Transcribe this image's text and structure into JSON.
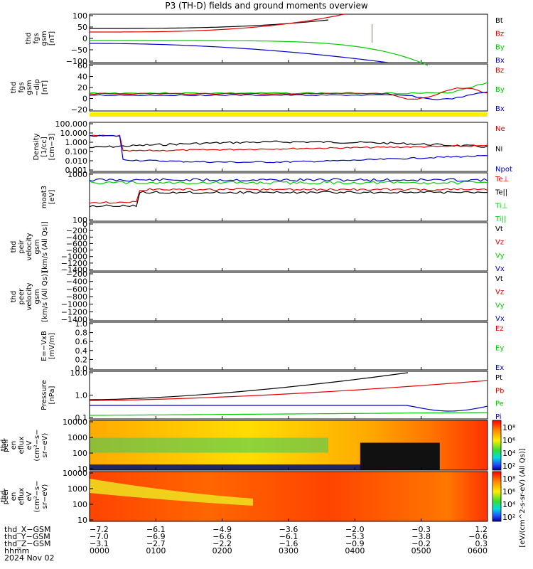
{
  "title": "P3 (TH-D) fields and ground moments overview",
  "colors": {
    "black": "#000000",
    "red": "#e00000",
    "green": "#00cc00",
    "blue": "#0000cc",
    "yellow": "#ffee00"
  },
  "chart_data": [
    {
      "type": "line",
      "ylabel": [
        "thd",
        "fgs",
        "gsm",
        "[nT]"
      ],
      "yticks": [
        "100",
        "50",
        "0",
        "−50",
        "−100"
      ],
      "legend": [
        {
          "label": "Bt",
          "color": "black"
        },
        {
          "label": "Bz",
          "color": "red"
        },
        {
          "label": "By",
          "color": "green"
        },
        {
          "label": "Bx",
          "color": "blue"
        }
      ]
    },
    {
      "type": "line",
      "ylabel": [
        "thd",
        "fgs",
        "gsm",
        "−dip",
        "[nT]"
      ],
      "yticks": [
        "60",
        "40",
        "20",
        "0",
        "−20"
      ],
      "legend": [
        {
          "label": "Bz",
          "color": "red"
        },
        {
          "label": "By",
          "color": "green"
        },
        {
          "label": "Bx",
          "color": "blue"
        }
      ]
    },
    {
      "type": "line",
      "ylabel": [
        "Density",
        "[1/cc]",
        "[cm−3]"
      ],
      "yticks": [
        "100.000",
        "10.000",
        "1.000",
        "0.100",
        "0.010",
        "0.001"
      ],
      "legend": [
        {
          "label": "Ne",
          "color": "red"
        },
        {
          "label": "Ni",
          "color": "black"
        },
        {
          "label": "Npot",
          "color": "blue"
        }
      ]
    },
    {
      "type": "line",
      "ylabel": [
        "moat3",
        "[eV]"
      ],
      "yticks": [
        "1000",
        "100"
      ],
      "legend": [
        {
          "label": "Te⊥",
          "color": "red"
        },
        {
          "label": "Te||",
          "color": "black"
        },
        {
          "label": "Ti⊥",
          "color": "green"
        },
        {
          "label": "Ti||",
          "color": "green"
        }
      ]
    },
    {
      "type": "line",
      "ylabel": [
        "thd",
        "peir",
        "velocity",
        "gsm",
        "[km/s (All Qs)]"
      ],
      "yticks": [
        "0",
        "−200",
        "−400",
        "−600",
        "−800",
        "−1000",
        "−1200",
        "−1400"
      ],
      "legend": [
        {
          "label": "Vt",
          "color": "black"
        },
        {
          "label": "Vz",
          "color": "red"
        },
        {
          "label": "Vy",
          "color": "green"
        },
        {
          "label": "Vx",
          "color": "blue"
        }
      ]
    },
    {
      "type": "line",
      "ylabel": [
        "thd",
        "peer",
        "velocity",
        "gsm",
        "[km/s (All Qs)]"
      ],
      "yticks": [
        "−200",
        "−400",
        "−600",
        "−800",
        "−1000",
        "−1200",
        "−1400"
      ],
      "legend": [
        {
          "label": "Vt",
          "color": "black"
        },
        {
          "label": "Vz",
          "color": "red"
        },
        {
          "label": "Vy",
          "color": "green"
        },
        {
          "label": "Vx",
          "color": "blue"
        }
      ]
    },
    {
      "type": "line",
      "ylabel": [
        "E=−VxB",
        "[mV/m]"
      ],
      "yticks": [
        "1.0",
        "0.8",
        "0.6",
        "0.4",
        "0.2",
        "0.0"
      ],
      "legend": [
        {
          "label": "Ez",
          "color": "red"
        },
        {
          "label": "Ey",
          "color": "green"
        },
        {
          "label": "Ex",
          "color": "blue"
        }
      ]
    },
    {
      "type": "line",
      "ylabel": [
        "Pressure",
        "[nPa]"
      ],
      "yticks": [
        "10.0",
        "1.0",
        "0.1"
      ],
      "legend": [
        {
          "label": "Pt",
          "color": "black"
        },
        {
          "label": "Pb",
          "color": "red"
        },
        {
          "label": "Pe",
          "color": "green"
        },
        {
          "label": "Pi",
          "color": "blue"
        }
      ]
    },
    {
      "type": "heatmap",
      "ylabel": [
        "thd",
        "peir",
        "en",
        "eflux",
        "eV",
        "(cm²−s−",
        "sr−eV)"
      ],
      "yticks": [
        "10000",
        "1000",
        "100",
        "10"
      ],
      "colorbar": [
        "10⁸",
        "10⁶",
        "10⁴",
        "10²"
      ]
    },
    {
      "type": "heatmap",
      "ylabel": [
        "thd",
        "peer",
        "en",
        "eflux",
        "eV",
        "(cm²−s−",
        "sr−eV)"
      ],
      "yticks": [
        "10000",
        "1000",
        "100",
        "10"
      ],
      "colorbar": [
        "10⁸",
        "10⁶",
        "10⁴",
        "10²"
      ]
    }
  ],
  "colorbar_label": "[eV/(cm^2-s-sr-eV) (All Qs)]",
  "bottom": {
    "rows": [
      {
        "label": "thd_X−GSM",
        "values": [
          "−7.2",
          "−6.1",
          "−4.9",
          "−3.6",
          "−2.0",
          "−0.3",
          "1.2"
        ]
      },
      {
        "label": "thd_Y−GSM",
        "values": [
          "−7.0",
          "−6.9",
          "−6.6",
          "−6.1",
          "−5.3",
          "−3.8",
          "−0.6"
        ]
      },
      {
        "label": "thd_Z−GSM",
        "values": [
          "−3.1",
          "−2.7",
          "−2.2",
          "−1.6",
          "−0.9",
          "−0.2",
          "0.3"
        ]
      },
      {
        "label": "hhmm",
        "values": [
          "0000",
          "0100",
          "0200",
          "0300",
          "0400",
          "0500",
          "0600"
        ]
      }
    ],
    "date": "2024 Nov 02"
  }
}
